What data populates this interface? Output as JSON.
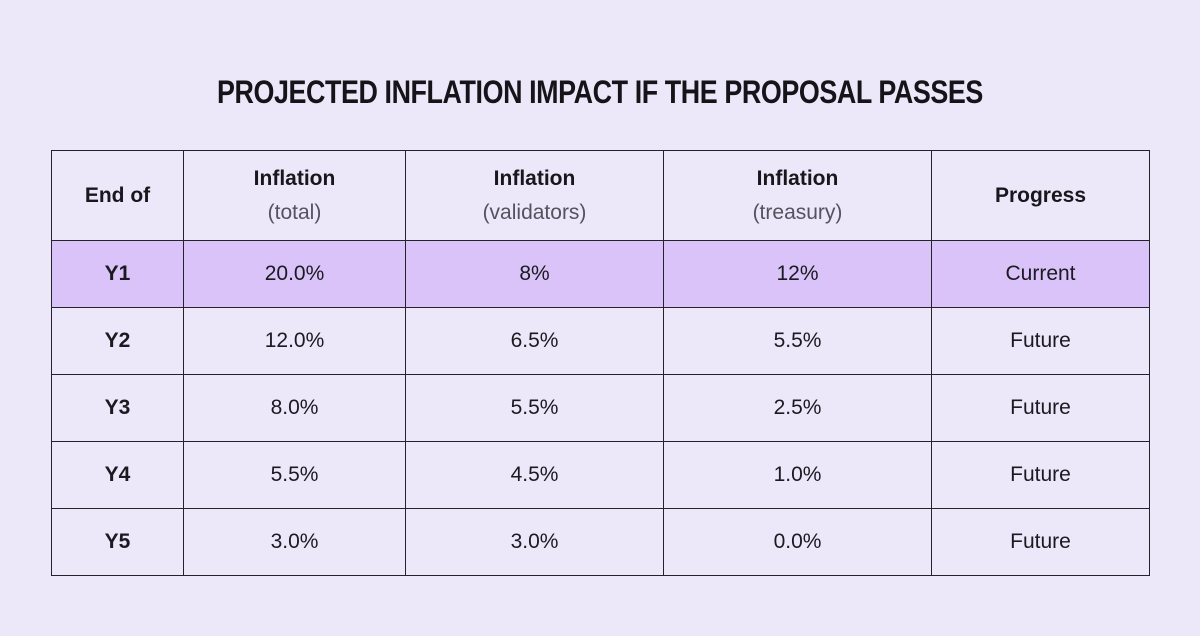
{
  "page": {
    "title": "PROJECTED INFLATION IMPACT IF THE PROPOSAL PASSES"
  },
  "colors": {
    "background": "#EDE7FA",
    "highlight_row": "#D9C3F8",
    "border": "#232329",
    "header_text": "#17171C",
    "subheader_text": "#55525E",
    "cell_text": "#1A1A20",
    "future_text": "#8D8A99"
  },
  "table": {
    "columns": [
      {
        "label": "End of",
        "sub": ""
      },
      {
        "label": "Inflation",
        "sub": "(total)"
      },
      {
        "label": "Inflation",
        "sub": "(validators)"
      },
      {
        "label": "Inflation",
        "sub": "(treasury)"
      },
      {
        "label": "Progress",
        "sub": ""
      }
    ],
    "rows": [
      {
        "year": "Y1",
        "total": "20.0%",
        "validators": "8%",
        "treasury": "12%",
        "progress": "Current",
        "state": "current"
      },
      {
        "year": "Y2",
        "total": "12.0%",
        "validators": "6.5%",
        "treasury": "5.5%",
        "progress": "Future",
        "state": "future"
      },
      {
        "year": "Y3",
        "total": "8.0%",
        "validators": "5.5%",
        "treasury": "2.5%",
        "progress": "Future",
        "state": "future"
      },
      {
        "year": "Y4",
        "total": "5.5%",
        "validators": "4.5%",
        "treasury": "1.0%",
        "progress": "Future",
        "state": "future"
      },
      {
        "year": "Y5",
        "total": "3.0%",
        "validators": "3.0%",
        "treasury": "0.0%",
        "progress": "Future",
        "state": "future"
      }
    ]
  },
  "chart_data": {
    "type": "table",
    "title": "PROJECTED INFLATION IMPACT IF THE PROPOSAL PASSES",
    "columns": [
      "End of",
      "Inflation (total)",
      "Inflation (validators)",
      "Inflation (treasury)",
      "Progress"
    ],
    "categories": [
      "Y1",
      "Y2",
      "Y3",
      "Y4",
      "Y5"
    ],
    "series": [
      {
        "name": "Inflation (total)",
        "values": [
          20.0,
          12.0,
          8.0,
          5.5,
          3.0
        ]
      },
      {
        "name": "Inflation (validators)",
        "values": [
          8.0,
          6.5,
          5.5,
          4.5,
          3.0
        ]
      },
      {
        "name": "Inflation (treasury)",
        "values": [
          12.0,
          5.5,
          2.5,
          1.0,
          0.0
        ]
      }
    ],
    "rows": [
      [
        "Y1",
        "20.0%",
        "8%",
        "12%",
        "Current"
      ],
      [
        "Y2",
        "12.0%",
        "6.5%",
        "5.5%",
        "Future"
      ],
      [
        "Y3",
        "8.0%",
        "5.5%",
        "2.5%",
        "Future"
      ],
      [
        "Y4",
        "5.5%",
        "4.5%",
        "1.0%",
        "Future"
      ],
      [
        "Y5",
        "3.0%",
        "3.0%",
        "0.0%",
        "Future"
      ]
    ],
    "highlighted_row": "Y1",
    "layout": {
      "grid": true,
      "legend_position": "none"
    }
  }
}
